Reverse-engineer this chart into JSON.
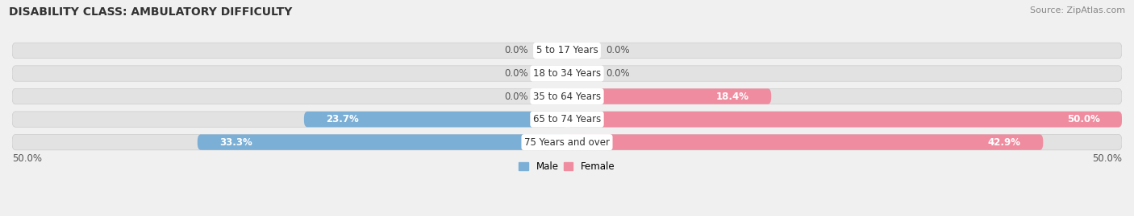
{
  "title": "DISABILITY CLASS: AMBULATORY DIFFICULTY",
  "source": "Source: ZipAtlas.com",
  "categories": [
    "5 to 17 Years",
    "18 to 34 Years",
    "35 to 64 Years",
    "65 to 74 Years",
    "75 Years and over"
  ],
  "male_values": [
    0.0,
    0.0,
    0.0,
    23.7,
    33.3
  ],
  "female_values": [
    0.0,
    0.0,
    18.4,
    50.0,
    42.9
  ],
  "male_color": "#7cafd6",
  "female_color": "#f08ca0",
  "background_color": "#f0f0f0",
  "bar_bg_color": "#e2e2e2",
  "max_val": 50.0,
  "x_tick_left": "50.0%",
  "x_tick_right": "50.0%",
  "title_fontsize": 10,
  "source_fontsize": 8,
  "label_fontsize": 8.5,
  "category_fontsize": 8.5
}
